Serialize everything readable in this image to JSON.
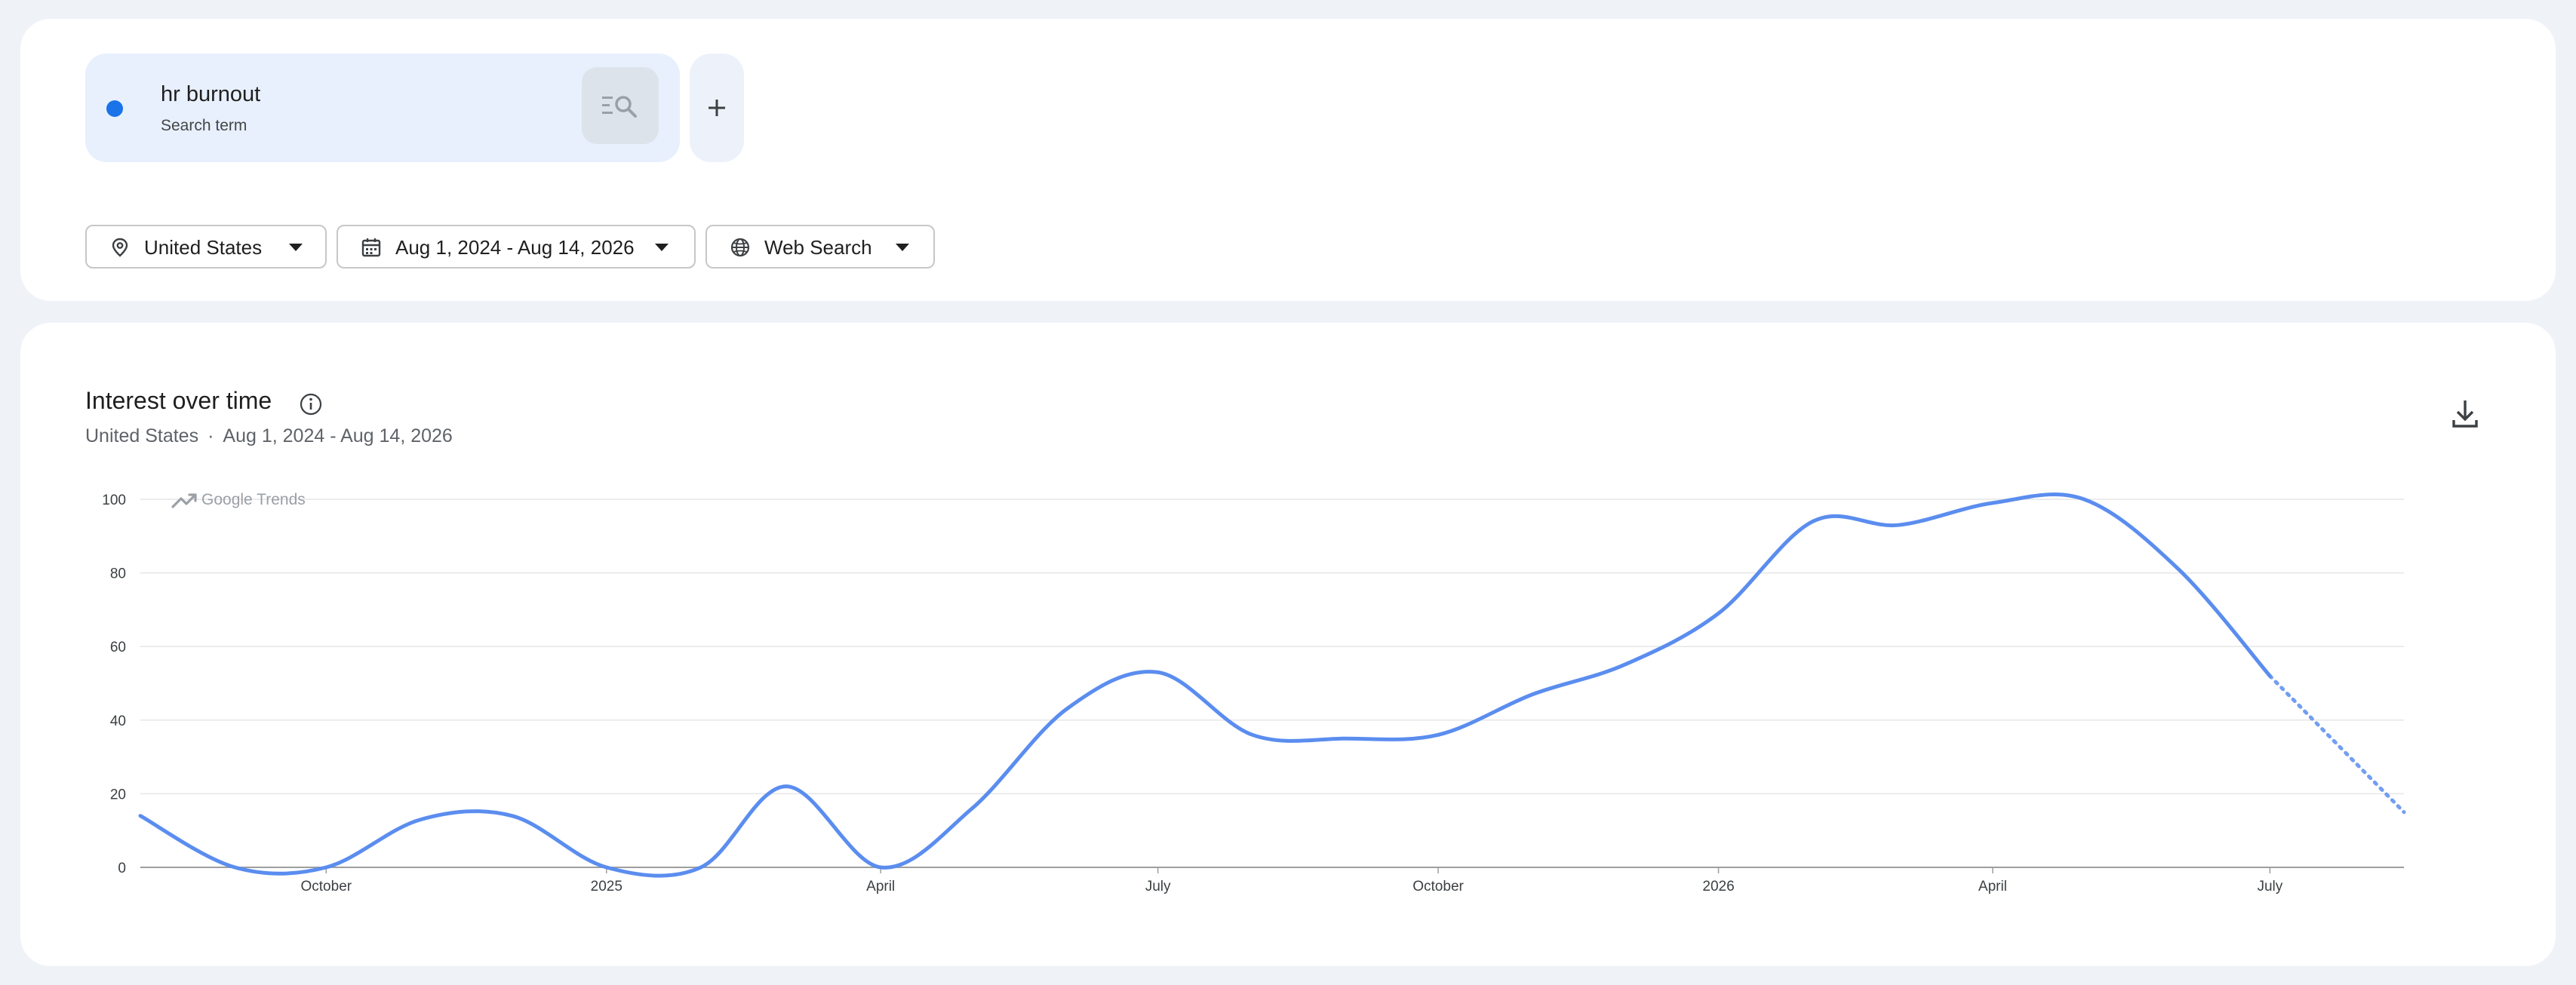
{
  "search_term": {
    "name": "hr burnout",
    "type_label": "Search term",
    "color": "#1a73e8"
  },
  "filters": {
    "location": "United States",
    "date_range": "Aug 1, 2024 - Aug 14, 2026",
    "property": "Web Search"
  },
  "icons": {
    "location": "location-pin-icon",
    "date": "calendar-icon",
    "property": "globe-icon",
    "compare": "search-compare-icon",
    "add": "plus-icon",
    "info": "info-icon",
    "download": "download-icon"
  },
  "chart_card": {
    "title": "Interest over time",
    "subtitle_location": "United States",
    "subtitle_separator": "·",
    "subtitle_range": "Aug 1, 2024 - Aug 14, 2026",
    "watermark": "Google Trends"
  },
  "chart_data": {
    "type": "line",
    "title": "Interest over time",
    "xlabel": "",
    "ylabel": "",
    "ylim": [
      0,
      100
    ],
    "yticks": [
      0,
      20,
      40,
      60,
      80,
      100
    ],
    "grid": true,
    "x_range": [
      "2024-08-01",
      "2026-08-14"
    ],
    "x_ticks": [
      {
        "date": "2024-10-01",
        "label": "October"
      },
      {
        "date": "2025-01-01",
        "label": "2025"
      },
      {
        "date": "2025-04-01",
        "label": "April"
      },
      {
        "date": "2025-07-01",
        "label": "July"
      },
      {
        "date": "2025-10-01",
        "label": "October"
      },
      {
        "date": "2026-01-01",
        "label": "2026"
      },
      {
        "date": "2026-04-01",
        "label": "April"
      },
      {
        "date": "2026-07-01",
        "label": "July"
      }
    ],
    "series": [
      {
        "name": "hr burnout",
        "color": "#5b8def",
        "points": [
          [
            "2024-08-01",
            14
          ],
          [
            "2024-09-01",
            0
          ],
          [
            "2024-10-01",
            0
          ],
          [
            "2024-11-01",
            13
          ],
          [
            "2024-12-01",
            14
          ],
          [
            "2025-01-01",
            0
          ],
          [
            "2025-02-01",
            0
          ],
          [
            "2025-03-01",
            22
          ],
          [
            "2025-04-01",
            0
          ],
          [
            "2025-05-01",
            16
          ],
          [
            "2025-06-01",
            43
          ],
          [
            "2025-07-01",
            53
          ],
          [
            "2025-08-01",
            36
          ],
          [
            "2025-09-01",
            35
          ],
          [
            "2025-10-01",
            36
          ],
          [
            "2025-11-01",
            47
          ],
          [
            "2025-12-01",
            55
          ],
          [
            "2026-01-01",
            69
          ],
          [
            "2026-02-01",
            94
          ],
          [
            "2026-03-01",
            93
          ],
          [
            "2026-04-01",
            99
          ],
          [
            "2026-05-01",
            100
          ],
          [
            "2026-06-01",
            81
          ],
          [
            "2026-07-01",
            52
          ]
        ],
        "partial_points": [
          [
            "2026-07-01",
            52
          ],
          [
            "2026-08-14",
            15
          ]
        ]
      }
    ]
  }
}
